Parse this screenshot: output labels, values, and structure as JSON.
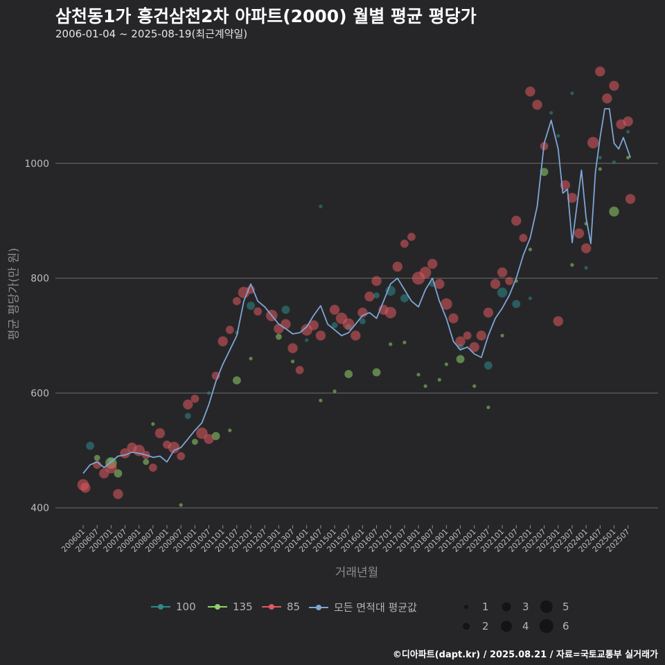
{
  "title": "삼천동1가 흥건삼천2차 아파트(2000) 월별 평균 평당가",
  "subtitle": "2006-01-04 ~ 2025-08-19(최근계약일)",
  "footer": "©디아파트(dapt.kr) / 2025.08.21 / 자료=국토교통부 실거래가",
  "legend": {
    "items": [
      {
        "label": "100",
        "color": "#2e8b8b"
      },
      {
        "label": "135",
        "color": "#8fd16a"
      },
      {
        "label": "85",
        "color": "#e05a5f"
      },
      {
        "label": "모든 면적대 평균값",
        "color": "#7fa6d6"
      }
    ],
    "sizes": [
      {
        "label": "1",
        "value": 1
      },
      {
        "label": "2",
        "value": 2
      },
      {
        "label": "3",
        "value": 3
      },
      {
        "label": "4",
        "value": 4
      },
      {
        "label": "5",
        "value": 5
      },
      {
        "label": "6",
        "value": 6
      }
    ]
  },
  "chart_data": {
    "type": "scatter",
    "title": "삼천동1가 흥건삼천2차 아파트(2000) 월별 평균 평당가",
    "subtitle": "2006-01-04 ~ 2025-08-19(최근계약일)",
    "xlabel": "거래년월",
    "ylabel": "평균 평당가(만 원)",
    "x_range": [
      "2006-01",
      "2025-08"
    ],
    "ylim": [
      370,
      1200
    ],
    "yticks": [
      400,
      600,
      800,
      1000
    ],
    "x_ticks": [
      "200601",
      "200607",
      "200701",
      "200707",
      "200801",
      "200807",
      "200901",
      "200907",
      "201001",
      "201007",
      "201101",
      "201107",
      "201201",
      "201207",
      "201301",
      "201307",
      "201401",
      "201407",
      "201501",
      "201507",
      "201601",
      "201607",
      "201701",
      "201707",
      "201801",
      "201807",
      "201901",
      "201907",
      "202001",
      "202007",
      "202101",
      "202107",
      "202201",
      "202207",
      "202301",
      "202307",
      "202401",
      "202407",
      "202501",
      "202507"
    ],
    "grid": true,
    "legend_position": "bottom",
    "series": [
      {
        "name": "모든 면적대 평균값",
        "type": "line",
        "color": "#7fa6d6",
        "points": [
          [
            "2006-01",
            460
          ],
          [
            "2006-04",
            475
          ],
          [
            "2006-07",
            480
          ],
          [
            "2006-10",
            470
          ],
          [
            "2007-01",
            480
          ],
          [
            "2007-04",
            490
          ],
          [
            "2007-07",
            492
          ],
          [
            "2007-10",
            497
          ],
          [
            "2008-01",
            495
          ],
          [
            "2008-04",
            492
          ],
          [
            "2008-07",
            488
          ],
          [
            "2008-10",
            490
          ],
          [
            "2009-01",
            480
          ],
          [
            "2009-04",
            500
          ],
          [
            "2009-07",
            505
          ],
          [
            "2009-10",
            520
          ],
          [
            "2010-01",
            535
          ],
          [
            "2010-04",
            548
          ],
          [
            "2010-07",
            580
          ],
          [
            "2010-10",
            620
          ],
          [
            "2011-01",
            650
          ],
          [
            "2011-04",
            675
          ],
          [
            "2011-07",
            700
          ],
          [
            "2011-10",
            760
          ],
          [
            "2012-01",
            790
          ],
          [
            "2012-04",
            760
          ],
          [
            "2012-07",
            750
          ],
          [
            "2012-10",
            735
          ],
          [
            "2013-01",
            720
          ],
          [
            "2013-04",
            712
          ],
          [
            "2013-07",
            703
          ],
          [
            "2013-10",
            705
          ],
          [
            "2014-01",
            715
          ],
          [
            "2014-04",
            735
          ],
          [
            "2014-07",
            752
          ],
          [
            "2014-10",
            720
          ],
          [
            "2015-01",
            710
          ],
          [
            "2015-04",
            700
          ],
          [
            "2015-07",
            705
          ],
          [
            "2015-10",
            720
          ],
          [
            "2016-01",
            735
          ],
          [
            "2016-04",
            740
          ],
          [
            "2016-07",
            730
          ],
          [
            "2016-10",
            760
          ],
          [
            "2017-01",
            790
          ],
          [
            "2017-04",
            800
          ],
          [
            "2017-07",
            780
          ],
          [
            "2017-10",
            760
          ],
          [
            "2018-01",
            750
          ],
          [
            "2018-04",
            780
          ],
          [
            "2018-07",
            800
          ],
          [
            "2018-10",
            760
          ],
          [
            "2019-01",
            730
          ],
          [
            "2019-04",
            690
          ],
          [
            "2019-07",
            675
          ],
          [
            "2019-10",
            680
          ],
          [
            "2020-01",
            668
          ],
          [
            "2020-04",
            662
          ],
          [
            "2020-07",
            700
          ],
          [
            "2020-10",
            730
          ],
          [
            "2021-01",
            748
          ],
          [
            "2021-04",
            770
          ],
          [
            "2021-07",
            800
          ],
          [
            "2021-10",
            840
          ],
          [
            "2022-01",
            870
          ],
          [
            "2022-04",
            925
          ],
          [
            "2022-07",
            1035
          ],
          [
            "2022-10",
            1075
          ],
          [
            "2023-01",
            1025
          ],
          [
            "2023-03",
            948
          ],
          [
            "2023-05",
            955
          ],
          [
            "2023-07",
            862
          ],
          [
            "2023-09",
            925
          ],
          [
            "2023-11",
            988
          ],
          [
            "2024-01",
            905
          ],
          [
            "2024-03",
            860
          ],
          [
            "2024-05",
            985
          ],
          [
            "2024-07",
            1045
          ],
          [
            "2024-09",
            1095
          ],
          [
            "2024-11",
            1095
          ],
          [
            "2025-01",
            1035
          ],
          [
            "2025-03",
            1025
          ],
          [
            "2025-05",
            1045
          ],
          [
            "2025-08",
            1010
          ]
        ]
      },
      {
        "name": "100",
        "type": "scatter",
        "color": "#2e8b8b",
        "points": [
          [
            "2006-04",
            508,
            3
          ],
          [
            "2007-01",
            482,
            2
          ],
          [
            "2009-10",
            560,
            2
          ],
          [
            "2010-07",
            600,
            1
          ],
          [
            "2011-07",
            705,
            1
          ],
          [
            "2012-01",
            752,
            3
          ],
          [
            "2013-04",
            745,
            3
          ],
          [
            "2014-01",
            692,
            1
          ],
          [
            "2014-07",
            925,
            1
          ],
          [
            "2015-01",
            718,
            2
          ],
          [
            "2015-07",
            715,
            2
          ],
          [
            "2016-01",
            725,
            2
          ],
          [
            "2016-07",
            770,
            2
          ],
          [
            "2017-01",
            778,
            4
          ],
          [
            "2017-07",
            765,
            3
          ],
          [
            "2018-07",
            790,
            2
          ],
          [
            "2019-07",
            680,
            2
          ],
          [
            "2020-07",
            648,
            3
          ],
          [
            "2021-01",
            775,
            4
          ],
          [
            "2021-07",
            755,
            3
          ],
          [
            "2022-01",
            765,
            1
          ],
          [
            "2022-10",
            1088,
            1
          ],
          [
            "2023-01",
            1048,
            1
          ],
          [
            "2023-07",
            1122,
            1
          ],
          [
            "2024-01",
            818,
            1
          ],
          [
            "2024-07",
            1010,
            1
          ],
          [
            "2025-01",
            1002,
            1
          ],
          [
            "2025-07",
            1055,
            1
          ]
        ]
      },
      {
        "name": "135",
        "type": "scatter",
        "color": "#8fd16a",
        "points": [
          [
            "2006-07",
            487,
            2
          ],
          [
            "2007-01",
            478,
            5
          ],
          [
            "2007-04",
            460,
            3
          ],
          [
            "2008-04",
            480,
            2
          ],
          [
            "2008-07",
            546,
            1
          ],
          [
            "2009-07",
            405,
            1
          ],
          [
            "2010-01",
            515,
            2
          ],
          [
            "2010-10",
            525,
            3
          ],
          [
            "2011-04",
            535,
            1
          ],
          [
            "2011-07",
            622,
            3
          ],
          [
            "2012-01",
            660,
            1
          ],
          [
            "2013-01",
            698,
            2
          ],
          [
            "2013-07",
            655,
            1
          ],
          [
            "2014-07",
            587,
            1
          ],
          [
            "2015-01",
            603,
            1
          ],
          [
            "2015-07",
            633,
            3
          ],
          [
            "2016-07",
            636,
            3
          ],
          [
            "2017-01",
            685,
            1
          ],
          [
            "2017-07",
            688,
            1
          ],
          [
            "2018-01",
            632,
            1
          ],
          [
            "2018-04",
            612,
            1
          ],
          [
            "2018-10",
            623,
            1
          ],
          [
            "2019-01",
            650,
            1
          ],
          [
            "2019-07",
            659,
            3
          ],
          [
            "2020-01",
            612,
            1
          ],
          [
            "2020-07",
            575,
            1
          ],
          [
            "2021-01",
            700,
            1
          ],
          [
            "2021-07",
            795,
            1
          ],
          [
            "2022-01",
            850,
            1
          ],
          [
            "2022-07",
            985,
            3
          ],
          [
            "2023-07",
            823,
            1
          ],
          [
            "2024-01",
            895,
            1
          ],
          [
            "2024-07",
            990,
            1
          ],
          [
            "2025-01",
            916,
            4
          ],
          [
            "2025-07",
            1010,
            1
          ]
        ]
      },
      {
        "name": "85",
        "type": "scatter",
        "color": "#e05a5f",
        "points": [
          [
            "2006-01",
            440,
            5
          ],
          [
            "2006-02",
            435,
            4
          ],
          [
            "2006-07",
            475,
            3
          ],
          [
            "2006-10",
            460,
            4
          ],
          [
            "2007-01",
            470,
            5
          ],
          [
            "2007-04",
            424,
            4
          ],
          [
            "2007-07",
            495,
            4
          ],
          [
            "2007-10",
            505,
            4
          ],
          [
            "2008-01",
            500,
            5
          ],
          [
            "2008-04",
            492,
            3
          ],
          [
            "2008-07",
            470,
            3
          ],
          [
            "2008-10",
            530,
            4
          ],
          [
            "2009-01",
            510,
            3
          ],
          [
            "2009-04",
            505,
            5
          ],
          [
            "2009-07",
            490,
            3
          ],
          [
            "2009-10",
            580,
            4
          ],
          [
            "2010-01",
            590,
            3
          ],
          [
            "2010-04",
            530,
            5
          ],
          [
            "2010-07",
            520,
            4
          ],
          [
            "2010-10",
            630,
            3
          ],
          [
            "2011-01",
            690,
            4
          ],
          [
            "2011-04",
            710,
            3
          ],
          [
            "2011-07",
            760,
            3
          ],
          [
            "2011-10",
            775,
            5
          ],
          [
            "2012-01",
            780,
            3
          ],
          [
            "2012-04",
            742,
            3
          ],
          [
            "2012-10",
            735,
            5
          ],
          [
            "2013-01",
            712,
            4
          ],
          [
            "2013-04",
            720,
            4
          ],
          [
            "2013-07",
            678,
            4
          ],
          [
            "2013-10",
            640,
            3
          ],
          [
            "2014-01",
            710,
            5
          ],
          [
            "2014-04",
            718,
            4
          ],
          [
            "2014-07",
            700,
            4
          ],
          [
            "2015-01",
            745,
            4
          ],
          [
            "2015-04",
            730,
            5
          ],
          [
            "2015-07",
            720,
            5
          ],
          [
            "2015-10",
            700,
            4
          ],
          [
            "2016-01",
            740,
            4
          ],
          [
            "2016-04",
            768,
            4
          ],
          [
            "2016-07",
            795,
            4
          ],
          [
            "2016-10",
            745,
            4
          ],
          [
            "2017-01",
            740,
            5
          ],
          [
            "2017-04",
            820,
            4
          ],
          [
            "2017-07",
            860,
            3
          ],
          [
            "2017-10",
            872,
            3
          ],
          [
            "2018-01",
            800,
            6
          ],
          [
            "2018-04",
            810,
            5
          ],
          [
            "2018-07",
            825,
            4
          ],
          [
            "2018-10",
            790,
            4
          ],
          [
            "2019-01",
            755,
            5
          ],
          [
            "2019-04",
            730,
            4
          ],
          [
            "2019-07",
            690,
            4
          ],
          [
            "2019-10",
            700,
            3
          ],
          [
            "2020-01",
            680,
            4
          ],
          [
            "2020-04",
            700,
            4
          ],
          [
            "2020-07",
            740,
            4
          ],
          [
            "2020-10",
            790,
            4
          ],
          [
            "2021-01",
            810,
            4
          ],
          [
            "2021-04",
            795,
            3
          ],
          [
            "2021-07",
            900,
            4
          ],
          [
            "2021-10",
            870,
            3
          ],
          [
            "2022-01",
            1125,
            4
          ],
          [
            "2022-04",
            1102,
            4
          ],
          [
            "2022-07",
            1030,
            3
          ],
          [
            "2023-01",
            725,
            4
          ],
          [
            "2023-04",
            962,
            4
          ],
          [
            "2023-07",
            940,
            4
          ],
          [
            "2023-10",
            878,
            4
          ],
          [
            "2024-01",
            852,
            4
          ],
          [
            "2024-04",
            1036,
            5
          ],
          [
            "2024-07",
            1160,
            4
          ],
          [
            "2024-10",
            1113,
            4
          ],
          [
            "2025-01",
            1135,
            4
          ],
          [
            "2025-04",
            1068,
            4
          ],
          [
            "2025-07",
            1073,
            4
          ],
          [
            "2025-08",
            938,
            4
          ]
        ]
      }
    ]
  }
}
